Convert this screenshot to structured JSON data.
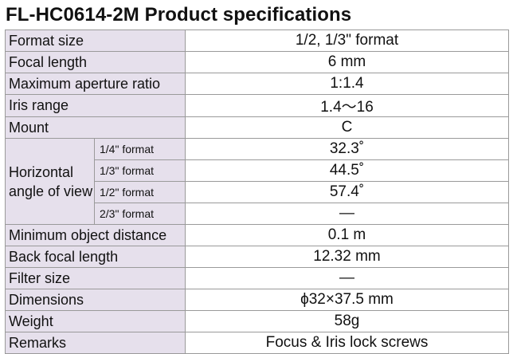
{
  "title": "FL-HC0614-2M Product specifications",
  "specs": {
    "format_size": {
      "label": "Format size",
      "value": "1/2, 1/3\" format"
    },
    "focal_length": {
      "label": "Focal length",
      "value": "6 mm"
    },
    "max_aperture": {
      "label": "Maximum aperture ratio",
      "value": "1:1.4"
    },
    "iris_range": {
      "label": "Iris range",
      "value": "1.4〜16"
    },
    "mount": {
      "label": "Mount",
      "value": "C"
    },
    "horizontal_angle": {
      "label": "Horizontal angle of view",
      "rows": [
        {
          "format": "1/4\" format",
          "value": "32.3˚"
        },
        {
          "format": "1/3\" format",
          "value": "44.5˚"
        },
        {
          "format": "1/2\" format",
          "value": "57.4˚"
        },
        {
          "format": "2/3\" format",
          "value": "—"
        }
      ]
    },
    "min_object_distance": {
      "label": "Minimum object distance",
      "value": "0.1 m"
    },
    "back_focal_length": {
      "label": "Back focal length",
      "value": "12.32 mm"
    },
    "filter_size": {
      "label": "Filter size",
      "value": "—"
    },
    "dimensions": {
      "label": "Dimensions",
      "value": "ϕ32×37.5 mm"
    },
    "weight": {
      "label": "Weight",
      "value": "58g"
    },
    "remarks": {
      "label": "Remarks",
      "value": "Focus & Iris lock screws"
    }
  },
  "colors": {
    "label_background": "#e6e0ec",
    "border": "#9a9a9a"
  }
}
